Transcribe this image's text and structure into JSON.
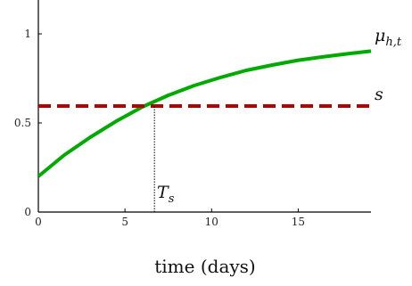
{
  "chart_data": {
    "type": "line",
    "xlabel": "time (days)",
    "ylabel": "",
    "xlim": [
      0,
      19.2
    ],
    "ylim": [
      0,
      1.1
    ],
    "x_ticks": [
      0,
      5,
      10,
      15
    ],
    "y_ticks": [
      0,
      0.5,
      1
    ],
    "x_tick_labels": [
      "0",
      "5",
      "10",
      "15"
    ],
    "y_tick_labels": [
      "0",
      "0.5",
      "1"
    ],
    "grid": false,
    "series": [
      {
        "name": "μ_{h,t}",
        "style": "solid",
        "color": "#00aa00",
        "x": [
          0,
          1.5,
          3,
          4.5,
          6,
          7.5,
          9,
          10.5,
          12,
          13.5,
          15,
          16.5,
          18,
          19.2
        ],
        "y": [
          0.2,
          0.32,
          0.42,
          0.51,
          0.59,
          0.655,
          0.71,
          0.755,
          0.795,
          0.825,
          0.852,
          0.872,
          0.89,
          0.903
        ]
      },
      {
        "name": "s",
        "style": "dashed",
        "color": "#b30000",
        "x": [
          0,
          19.2
        ],
        "y": [
          0.595,
          0.595
        ]
      }
    ],
    "annotations": [
      {
        "label": "T_s",
        "x": 6.7,
        "style": "dotted vertical line from axis to crossing point"
      }
    ]
  },
  "labels": {
    "mu": "μ",
    "mu_sub": "h,t",
    "s": "s",
    "Ts": "T",
    "Ts_sub": "s"
  },
  "colors": {
    "axis": "#000000",
    "mu_line": "#00aa00",
    "s_line": "#b30000"
  }
}
